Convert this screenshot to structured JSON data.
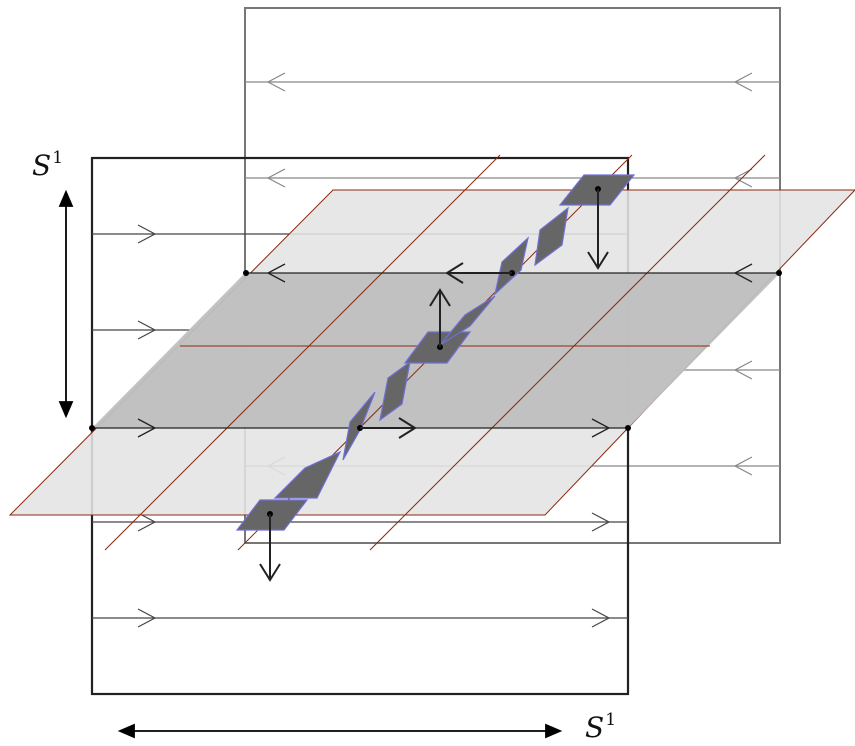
{
  "labels": {
    "circle_vertical": {
      "base": "S",
      "sup": "1"
    },
    "circle_horizontal": {
      "base": "S",
      "sup": "1"
    }
  },
  "colors": {
    "front_square": "#222222",
    "back_square": "#777777",
    "plane_fill_light": "#e4e4e4",
    "plane_fill_dark": "#bfbfbf",
    "plane_edge": "#8b2a10",
    "strip_fill": "#666666",
    "strip_edge": "#6f6fd8"
  }
}
